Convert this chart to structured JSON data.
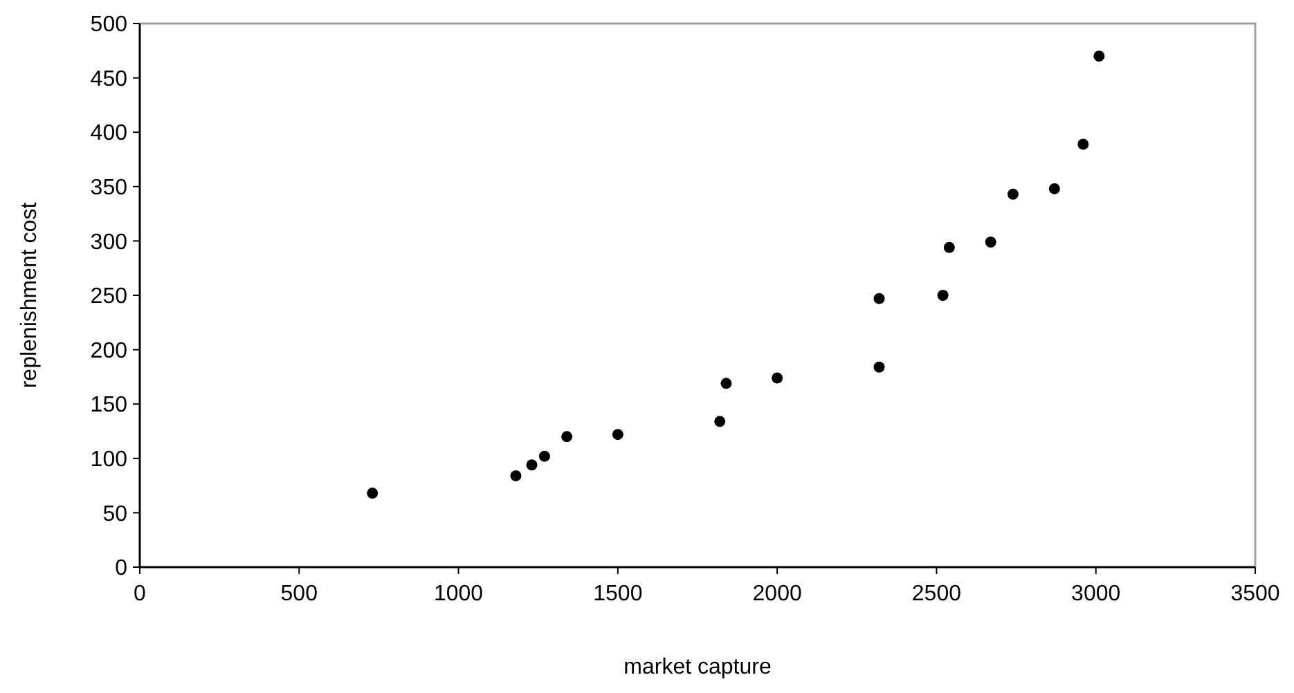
{
  "chart_data": {
    "type": "scatter",
    "xlabel": "market capture",
    "ylabel": "replenishment cost",
    "xlim": [
      0,
      3500
    ],
    "xticks": [
      0,
      500,
      1000,
      1500,
      2000,
      2500,
      3000,
      3500
    ],
    "ylim": [
      0,
      500
    ],
    "yticks": [
      0,
      50,
      100,
      150,
      200,
      250,
      300,
      350,
      400,
      450,
      500
    ],
    "grid": false,
    "marker": "circle",
    "series": [
      {
        "color": "#000000",
        "x": [
          730,
          1180,
          1230,
          1270,
          1340,
          1500,
          1820,
          1840,
          2000,
          2320,
          2320,
          2520,
          2540,
          2670,
          2740,
          2870,
          2960,
          3010
        ],
        "values": [
          68,
          84,
          94,
          102,
          120,
          122,
          134,
          169,
          174,
          184,
          247,
          250,
          294,
          299,
          343,
          348,
          389,
          470
        ]
      }
    ]
  }
}
